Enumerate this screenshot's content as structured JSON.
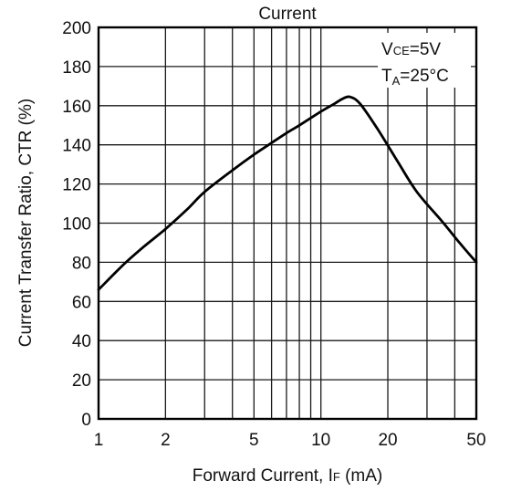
{
  "chart_data": {
    "type": "line",
    "title": "Current",
    "xlabel": {
      "main": "Forward Current, I",
      "sub": "F",
      "unit": " (mA)"
    },
    "ylabel": "Current Transfer Ratio, CTR (%)",
    "x_scale": "log",
    "xlim": [
      1,
      50
    ],
    "ylim": [
      0,
      200
    ],
    "x_ticks": [
      1,
      2,
      5,
      10,
      20,
      50
    ],
    "x_tick_labels": [
      "1",
      "2",
      "5",
      "10",
      "20",
      "50"
    ],
    "x_gridlines": [
      1,
      2,
      3,
      4,
      5,
      6,
      7,
      8,
      9,
      10,
      20,
      30,
      40,
      50
    ],
    "y_ticks": [
      0,
      20,
      40,
      60,
      80,
      100,
      120,
      140,
      160,
      180,
      200
    ],
    "y_tick_labels": [
      "0",
      "20",
      "40",
      "60",
      "80",
      "100",
      "120",
      "140",
      "160",
      "180",
      "200"
    ],
    "grid": true,
    "annotations": [
      {
        "main": "V",
        "sub": "CE",
        "rest": "=5V"
      },
      {
        "main": "T",
        "sub": "A",
        "rest": "=25°C"
      }
    ],
    "annotation_placement": "top-right",
    "series": [
      {
        "x": [
          1,
          1.3,
          1.6,
          2,
          2.5,
          3,
          4,
          5,
          6,
          7,
          8,
          10,
          11.5,
          12.5,
          13.5,
          15,
          18,
          22,
          27,
          35,
          42,
          50
        ],
        "y": [
          66,
          79,
          88,
          97,
          107,
          116,
          127,
          135,
          141,
          146,
          150,
          157,
          161,
          163.5,
          164.5,
          161,
          148,
          132,
          116,
          101,
          90,
          80
        ]
      }
    ]
  }
}
